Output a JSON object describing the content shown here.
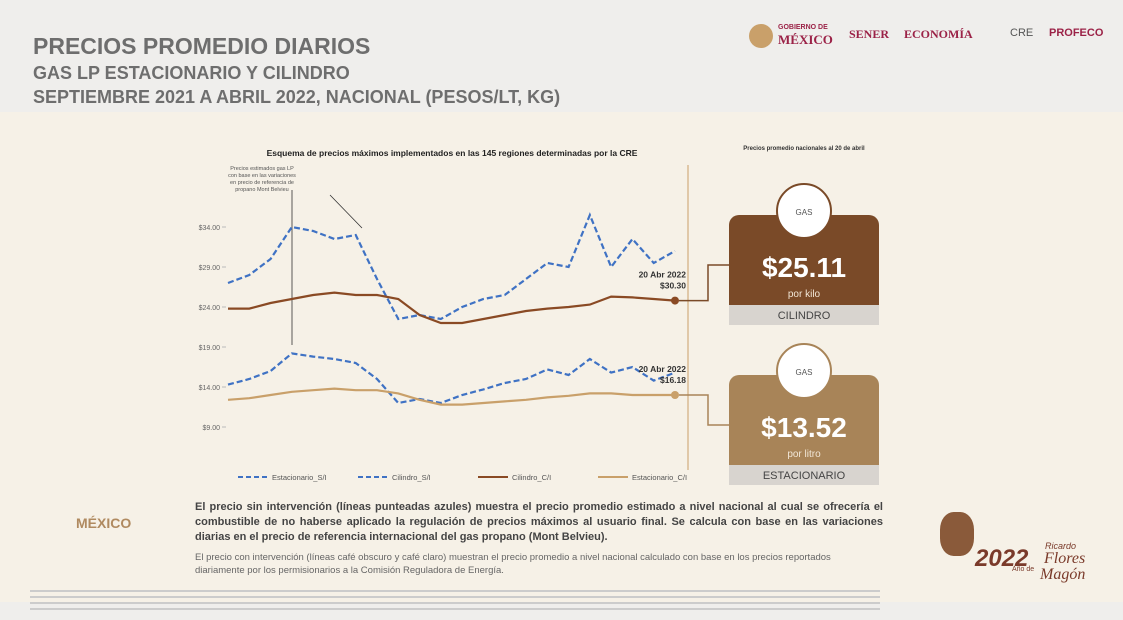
{
  "header": {
    "title": "PRECIOS PROMEDIO DIARIOS",
    "subtitle": "GAS LP ESTACIONARIO Y CILINDRO",
    "period": "SEPTIEMBRE 2021 A ABRIL 2022, NACIONAL (PESOS/LT, KG)"
  },
  "logos": {
    "gobierno_small": "GOBIERNO DE",
    "gobierno": "MÉXICO",
    "sener": "SENER",
    "economia": "ECONOMÍA",
    "cre": "CRE",
    "profeco": "PROFECO"
  },
  "chart_data": {
    "type": "line",
    "title": "Esquema de precios máximos implementados en las 145 regiones determinadas por la CRE",
    "annotation": "Precios estimados gas LP con base en las variaciones en precio de referencia de propano Mont Belvieu",
    "categories": [
      null,
      null,
      null,
      null,
      null,
      null,
      null,
      null,
      null,
      null,
      null,
      null,
      null,
      null,
      null,
      null,
      null,
      null,
      null,
      null,
      null,
      null
    ],
    "series": [
      {
        "name": "Estacionario_S/I",
        "color": "#3f72c4",
        "dashed": true,
        "values": [
          14.3,
          15.0,
          16.0,
          18.2,
          17.8,
          17.5,
          17.0,
          15.0,
          12.0,
          12.5,
          12.0,
          13.0,
          13.7,
          14.5,
          15.0,
          16.2,
          15.5,
          17.5,
          15.8,
          16.5,
          14.8,
          15.8
        ]
      },
      {
        "name": "Cilindro_S/I",
        "color": "#3f72c4",
        "dashed": true,
        "values": [
          27.0,
          28.0,
          30.0,
          34.0,
          33.5,
          32.5,
          33.0,
          27.5,
          22.5,
          23.0,
          22.5,
          24.0,
          25.0,
          25.5,
          27.5,
          29.5,
          29.0,
          35.5,
          29.0,
          32.5,
          29.5,
          31.0
        ]
      },
      {
        "name": "Cilindro_C/I",
        "color": "#8a4a24",
        "dashed": false,
        "values": [
          23.8,
          23.8,
          24.5,
          25.0,
          25.5,
          25.8,
          25.5,
          25.5,
          25.0,
          23.0,
          22.0,
          22.0,
          22.5,
          23.0,
          23.5,
          23.8,
          24.0,
          24.3,
          25.3,
          25.2,
          25.0,
          24.8
        ]
      },
      {
        "name": "Estacionario_C/I",
        "color": "#c9a06a",
        "dashed": false,
        "values": [
          12.4,
          12.6,
          13.0,
          13.4,
          13.6,
          13.8,
          13.6,
          13.6,
          13.2,
          12.4,
          11.8,
          11.8,
          12.0,
          12.2,
          12.4,
          12.7,
          12.9,
          13.2,
          13.2,
          13.0,
          13.0,
          13.0
        ]
      }
    ],
    "ylim": [
      9,
      38
    ],
    "yticks": [
      {
        "value": 9,
        "label": "$9.00"
      },
      {
        "value": 14,
        "label": "$14.00"
      },
      {
        "value": 19,
        "label": "$19.00"
      },
      {
        "value": 24,
        "label": "$24.00"
      },
      {
        "value": 29,
        "label": "$29.00"
      },
      {
        "value": 34,
        "label": "$34.00"
      }
    ],
    "callouts": [
      {
        "date": "20 Abr 2022",
        "price": "$30.30"
      },
      {
        "date": "20 Abr 2022",
        "price": "$16.18"
      }
    ]
  },
  "cards": {
    "heading": "Precios promedio nacionales al 20 de abril",
    "items": [
      {
        "icon": "GAS",
        "price": "$25.11",
        "unit": "por kilo",
        "label": "CILINDRO"
      },
      {
        "icon": "GAS",
        "price": "$13.52",
        "unit": "por litro",
        "label": "ESTACIONARIO"
      }
    ]
  },
  "text": {
    "p1": "El precio sin intervención (líneas punteadas azules) muestra el precio promedio estimado a nivel nacional al cual se ofrecería el combustible de no haberse aplicado la regulación de precios máximos al usuario final. Se calcula con base en las variaciones diarias en el precio de referencia internacional del gas propano (Mont Belvieu).",
    "p2": "El precio con intervención (líneas café obscuro y café claro) muestran el precio promedio a nivel nacional calculado con base en los precios reportados diariamente por los permisionarios a la Comisión Reguladora de Energía."
  },
  "footer": {
    "left_logo": "MÉXICO",
    "year": "2022",
    "year_small": "Año de",
    "name1": "Ricardo",
    "name2": "Flores",
    "name3": "Magón"
  }
}
